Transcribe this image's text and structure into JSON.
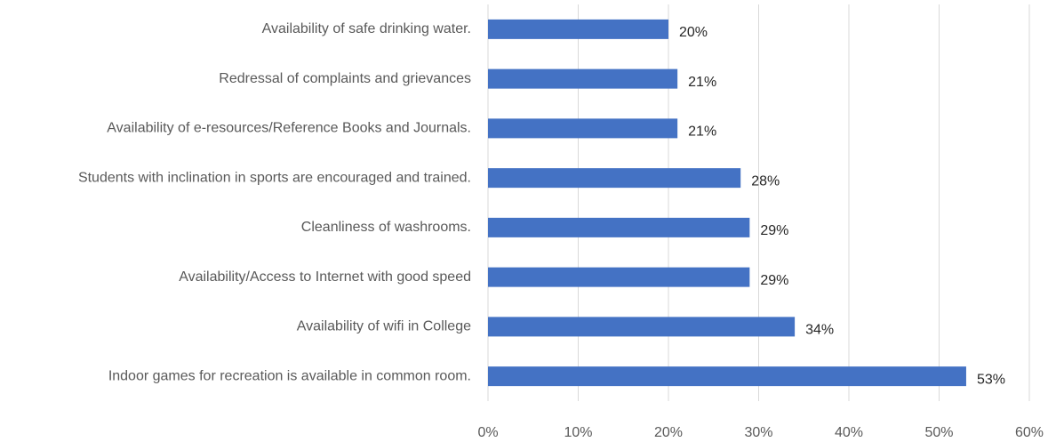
{
  "chart_data": {
    "type": "hbar",
    "categories": [
      "Availability of safe drinking water.",
      "Redressal of complaints and grievances",
      "Availability of e-resources/Reference Books and Journals.",
      "Students with inclination in sports are encouraged and trained.",
      "Cleanliness of washrooms.",
      "Availability/Access to Internet with good speed",
      "Availability of wifi in College",
      "Indoor games for recreation is available in common room."
    ],
    "values": [
      20,
      21,
      21,
      28,
      29,
      29,
      34,
      53
    ],
    "value_labels": [
      "20%",
      "21%",
      "21%",
      "28%",
      "29%",
      "29%",
      "34%",
      "53%"
    ],
    "color": "#4472c4",
    "xlim": [
      0,
      60
    ],
    "xticks": [
      {
        "value": 0,
        "label": "0%"
      },
      {
        "value": 10,
        "label": "10%"
      },
      {
        "value": 20,
        "label": "20%"
      },
      {
        "value": 30,
        "label": "30%"
      },
      {
        "value": 40,
        "label": "40%"
      },
      {
        "value": 50,
        "label": "50%"
      },
      {
        "value": 60,
        "label": "60%"
      }
    ],
    "grid": true
  }
}
